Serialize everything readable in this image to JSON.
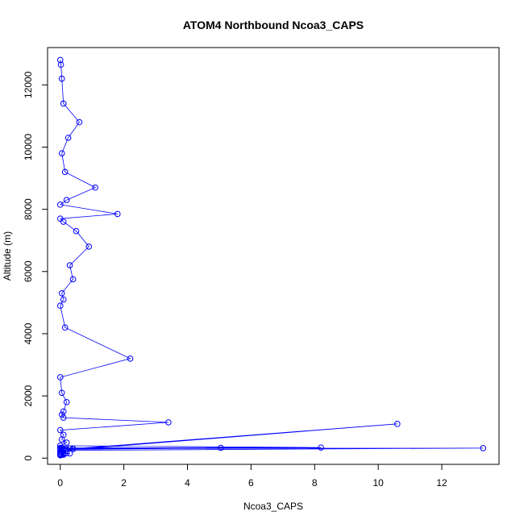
{
  "chart_data": {
    "type": "scatter",
    "title": "ATOM4 Northbound Ncoa3_CAPS",
    "xlabel": "Ncoa3_CAPS",
    "ylabel": "Altitude (m)",
    "xlim": [
      -0.4,
      13.8
    ],
    "ylim": [
      -200,
      13200
    ],
    "xticks": [
      0,
      2,
      4,
      6,
      8,
      10,
      12
    ],
    "yticks": [
      0,
      2000,
      4000,
      6000,
      8000,
      10000,
      12000
    ],
    "xtick_labels": [
      "0",
      "2",
      "4",
      "6",
      "8",
      "10",
      "12"
    ],
    "ytick_labels": [
      "0",
      "2000",
      "4000",
      "6000",
      "8000",
      "10000",
      "12000"
    ],
    "grid": false,
    "legend": "none",
    "series_color": "#0000ff",
    "marker": "open-circle",
    "connected": true,
    "series": [
      {
        "x": [
          0.0,
          0.02,
          0.05,
          0.1,
          0.6,
          0.25,
          0.05,
          0.15,
          1.1,
          0.2,
          0.0,
          1.8,
          0.0,
          0.1,
          0.5,
          0.9,
          0.3,
          0.4,
          0.05,
          0.1,
          0.0,
          0.15,
          2.2,
          0.0,
          0.05,
          0.2,
          0.1,
          0.05,
          0.1,
          3.4,
          0.0,
          0.1,
          0.05,
          0.2,
          0.0,
          8.2,
          0.0,
          0.05,
          0.3,
          0.1,
          0.0,
          0.05,
          0.1,
          0.0,
          0.05,
          13.3,
          0.0,
          0.1,
          0.4,
          0.2,
          5.05,
          0.0,
          0.05,
          0.4,
          10.6,
          0.1,
          0.0,
          0.05,
          0.2,
          0.3,
          0.1,
          0.0,
          0.05,
          0.1,
          0.02,
          0.0
        ],
        "y": [
          12800,
          12650,
          12200,
          11400,
          10800,
          10300,
          9800,
          9200,
          8700,
          8300,
          8150,
          7850,
          7700,
          7600,
          7300,
          6800,
          6200,
          5750,
          5300,
          5100,
          4900,
          4200,
          3200,
          2600,
          2100,
          1800,
          1500,
          1400,
          1300,
          1150,
          900,
          750,
          600,
          500,
          400,
          340,
          330,
          320,
          310,
          300,
          290,
          280,
          270,
          260,
          250,
          320,
          310,
          300,
          290,
          280,
          330,
          320,
          310,
          300,
          1100,
          250,
          200,
          180,
          160,
          150,
          140,
          130,
          120,
          110,
          100,
          90
        ]
      }
    ]
  }
}
